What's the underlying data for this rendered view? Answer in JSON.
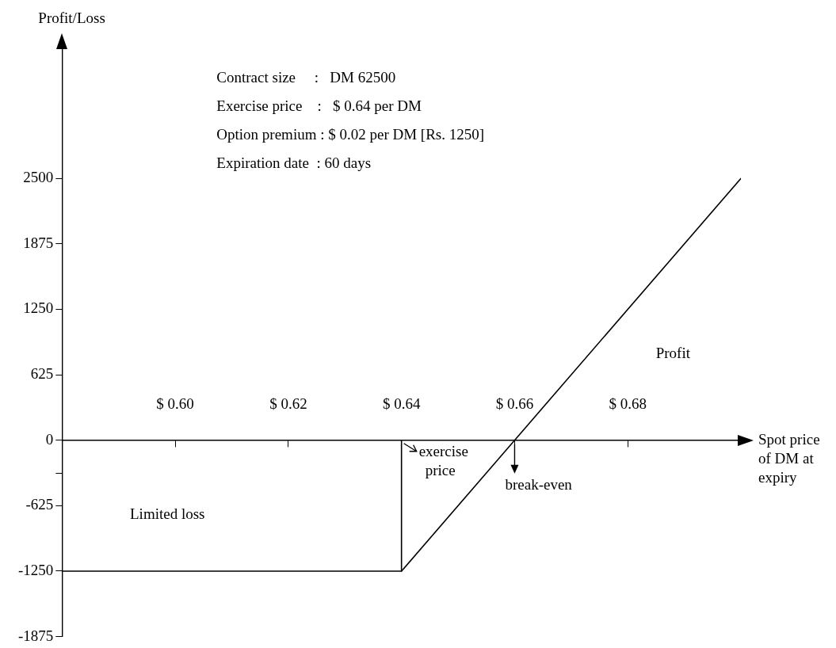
{
  "chart_data": {
    "type": "line",
    "xlabel": "Spot price of DM at expiry",
    "ylabel": "Profit/Loss",
    "series": [
      {
        "color": "#000000",
        "x": [
          0.58,
          0.64,
          0.66,
          0.7
        ],
        "values": [
          -1250,
          -1250,
          0,
          2500
        ]
      },
      {
        "color": "#000000",
        "x": [
          0.64,
          0.64
        ],
        "values": [
          0,
          -1250
        ]
      }
    ],
    "xlim": [
      0.58,
      0.7
    ],
    "ylim": [
      -1875,
      3750
    ],
    "xticks": [
      {
        "value": 0.6,
        "label": "$ 0.60"
      },
      {
        "value": 0.62,
        "label": "$ 0.62"
      },
      {
        "value": 0.64,
        "label": "$ 0.64"
      },
      {
        "value": 0.66,
        "label": "$ 0.66"
      },
      {
        "value": 0.68,
        "label": "$ 0.68"
      }
    ],
    "yticks": [
      -1875,
      -1250,
      -625,
      {
        "value": -312.5,
        "label": null
      },
      0,
      625,
      1250,
      1875,
      2500
    ],
    "annotations": [
      "Contract size     :   DM 62500",
      "Exercise price    :   $ 0.64 per DM",
      "Option premium : $ 0.02 per DM [Rs. 1250]",
      "Expiration date  : 60 days",
      "Limited loss",
      "Profit",
      {
        "text": "exercise price",
        "x": 0.64,
        "y": 0
      },
      {
        "text": "break-even",
        "x": 0.66,
        "y": 0
      }
    ],
    "grid": false,
    "legend": false,
    "marker": "none",
    "line_style": "solid"
  }
}
